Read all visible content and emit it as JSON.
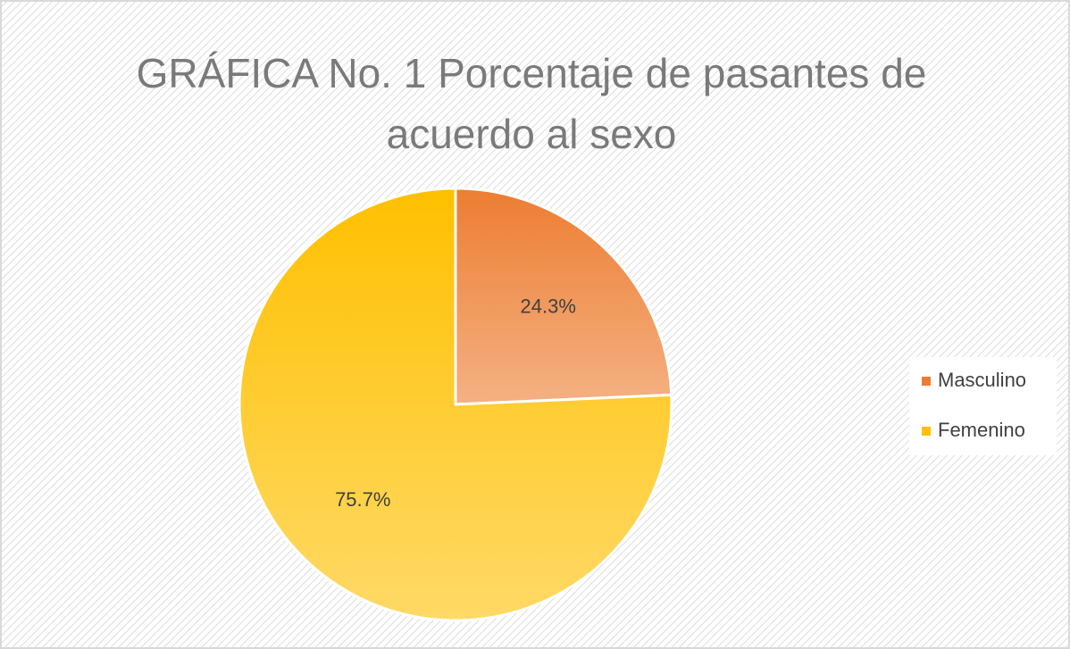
{
  "chart_data": {
    "type": "pie",
    "title": "GRÁFICA No. 1 Porcentaje de pasantes de acuerdo al sexo",
    "categories": [
      "Masculino",
      "Femenino"
    ],
    "values": [
      24.3,
      75.7
    ],
    "value_labels": [
      "24.3%",
      "75.7%"
    ],
    "colors": [
      "#ED7D31",
      "#FFC000"
    ],
    "legend": "right"
  }
}
